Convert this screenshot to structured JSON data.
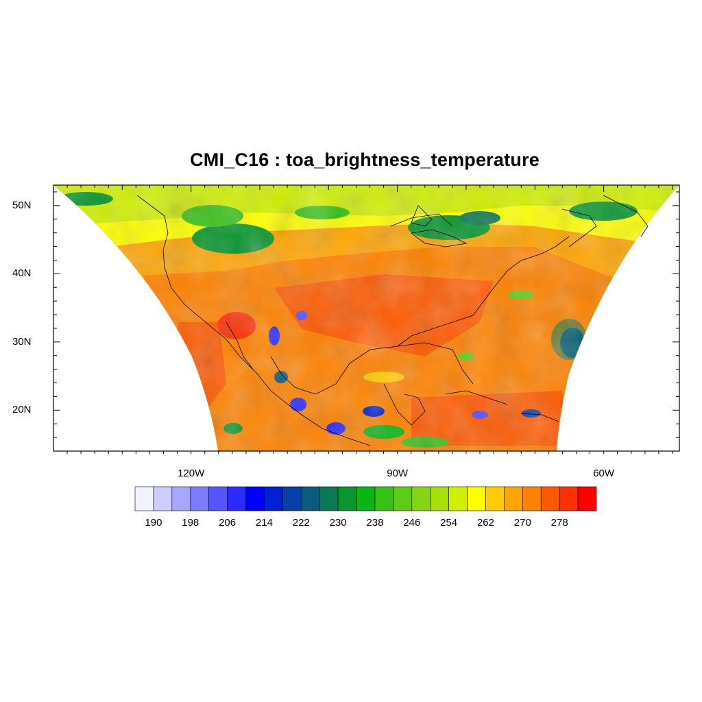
{
  "title": "CMI_C16 : toa_brightness_temperature",
  "colors": {
    "land_mask": "#d3d3d3",
    "coastline": "#000000",
    "frame": "#000000"
  },
  "chart_data": {
    "type": "heatmap",
    "title": "CMI_C16 : toa_brightness_temperature",
    "lat_range": [
      14,
      53
    ],
    "lon_range": [
      -140,
      -49
    ],
    "lat_ticks": [
      {
        "value": 20,
        "label": "20N"
      },
      {
        "value": 30,
        "label": "30N"
      },
      {
        "value": 40,
        "label": "40N"
      },
      {
        "value": 50,
        "label": "50N"
      }
    ],
    "lon_ticks": [
      {
        "value": -120,
        "label": "120W"
      },
      {
        "value": -90,
        "label": "90W"
      },
      {
        "value": -60,
        "label": "60W"
      }
    ],
    "colorbar": {
      "colors": [
        "#f3f3ff",
        "#cdcdff",
        "#a6a6ff",
        "#7c7cff",
        "#5555ff",
        "#2b2bff",
        "#0000ff",
        "#0021d1",
        "#0740a8",
        "#0b5a80",
        "#0a7a55",
        "#0a9530",
        "#0ab514",
        "#35c214",
        "#5ccc14",
        "#82d614",
        "#a8e00a",
        "#d0f000",
        "#ffff00",
        "#ffcc00",
        "#ffa500",
        "#ff8200",
        "#ff5a00",
        "#ff3000",
        "#ff0000"
      ],
      "tick_labels": [
        "190",
        "198",
        "206",
        "214",
        "222",
        "230",
        "238",
        "246",
        "254",
        "262",
        "270",
        "278"
      ]
    }
  }
}
